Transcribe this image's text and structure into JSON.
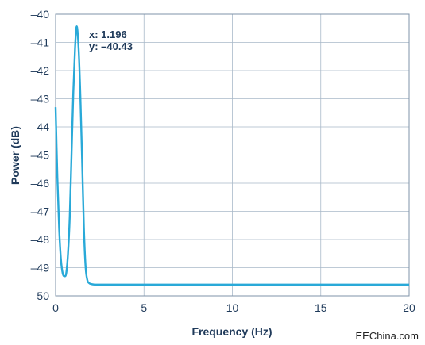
{
  "chart_data": {
    "type": "line",
    "title": "",
    "xlabel": "Frequency (Hz)",
    "ylabel": "Power (dB)",
    "xlim": [
      0,
      20
    ],
    "ylim": [
      -50,
      -40
    ],
    "xticks": [
      0,
      5,
      10,
      15,
      20
    ],
    "yticks": [
      -40,
      -41,
      -42,
      -43,
      -44,
      -45,
      -46,
      -47,
      -48,
      -49,
      -50
    ],
    "xtick_labels": [
      "0",
      "5",
      "10",
      "15",
      "20"
    ],
    "ytick_labels": [
      "–40",
      "–41",
      "–42",
      "–43",
      "–44",
      "–45",
      "–46",
      "–47",
      "–48",
      "–49",
      "–50"
    ],
    "grid": true,
    "line_color": "#29a9d8",
    "grid_color": "#a9b9c9",
    "series": [
      {
        "x": [
          0,
          0.1,
          0.2,
          0.3,
          0.4,
          0.5,
          0.6,
          0.7,
          0.8,
          0.9,
          1.0,
          1.1,
          1.196,
          1.3,
          1.4,
          1.5,
          1.6,
          1.7,
          1.8,
          1.9,
          2.0,
          2.2,
          2.5,
          3,
          5,
          10,
          15,
          20
        ],
        "values": [
          -43.3,
          -45.8,
          -47.6,
          -48.7,
          -49.2,
          -49.3,
          -49.2,
          -48.5,
          -47.2,
          -45.0,
          -42.8,
          -41.2,
          -40.43,
          -41.2,
          -42.9,
          -45.2,
          -47.6,
          -49.0,
          -49.45,
          -49.55,
          -49.58,
          -49.6,
          -49.6,
          -49.6,
          -49.6,
          -49.6,
          -49.6,
          -49.6
        ]
      }
    ],
    "annotation": {
      "x_text": "x: 1.196",
      "y_text": "y: –40.43",
      "x": 1.196,
      "y": -40.43
    }
  },
  "watermark": "EEChina.com"
}
